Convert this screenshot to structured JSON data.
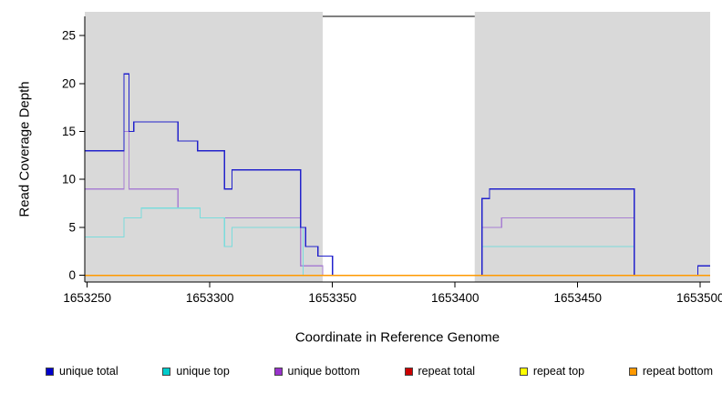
{
  "figure": {
    "background": "#ffffff",
    "shade_color": "#d9d9d9",
    "axis_color": "#000000"
  },
  "chart_data": {
    "type": "line",
    "subtype": "step-coverage-plot",
    "title": "",
    "xlabel": "Coordinate in Reference Genome",
    "ylabel": "Read Coverage Depth",
    "xlim": [
      1653249,
      1653504
    ],
    "ylim": [
      -0.7,
      27
    ],
    "x_ticks": [
      1653250,
      1653300,
      1653350,
      1653400,
      1653450,
      1653500
    ],
    "y_ticks": [
      0,
      5,
      10,
      15,
      20,
      25
    ],
    "grid": false,
    "legend_position": "bottom",
    "shaded_regions": [
      {
        "from": 1653249,
        "to": 1653346
      },
      {
        "from": 1653408,
        "to": 1653504
      }
    ],
    "series": [
      {
        "name": "repeat total",
        "color": "#cc0000",
        "step_points": [
          [
            1653249,
            0
          ]
        ]
      },
      {
        "name": "repeat top",
        "color": "#ffff00",
        "step_points": [
          [
            1653249,
            0
          ]
        ]
      },
      {
        "name": "unique bottom",
        "color": "#a87fd2",
        "step_points": [
          [
            1653249,
            9
          ],
          [
            1653265,
            15
          ],
          [
            1653267,
            9
          ],
          [
            1653287,
            7
          ],
          [
            1653296,
            6
          ],
          [
            1653337,
            1
          ],
          [
            1653346,
            0
          ],
          [
            1653411,
            5
          ],
          [
            1653419,
            6
          ],
          [
            1653473,
            0
          ]
        ]
      },
      {
        "name": "unique top",
        "color": "#7adcdc",
        "step_points": [
          [
            1653249,
            4
          ],
          [
            1653265,
            6
          ],
          [
            1653272,
            7
          ],
          [
            1653296,
            6
          ],
          [
            1653306,
            3
          ],
          [
            1653309,
            5
          ],
          [
            1653338,
            0
          ],
          [
            1653411,
            3
          ],
          [
            1653473,
            0
          ]
        ]
      },
      {
        "name": "unique total",
        "color": "#2222cc",
        "step_points": [
          [
            1653249,
            13
          ],
          [
            1653265,
            21
          ],
          [
            1653267,
            15
          ],
          [
            1653269,
            16
          ],
          [
            1653287,
            14
          ],
          [
            1653295,
            13
          ],
          [
            1653306,
            9
          ],
          [
            1653309,
            11
          ],
          [
            1653337,
            5
          ],
          [
            1653339,
            3
          ],
          [
            1653344,
            2
          ],
          [
            1653350,
            0
          ],
          [
            1653411,
            8
          ],
          [
            1653414,
            9
          ],
          [
            1653473,
            0
          ],
          [
            1653499,
            1
          ]
        ]
      },
      {
        "name": "repeat bottom",
        "color": "#ff9900",
        "step_points": [
          [
            1653249,
            0
          ]
        ]
      }
    ],
    "legend": [
      {
        "label": "unique total",
        "color": "#0000cc"
      },
      {
        "label": "unique top",
        "color": "#00cccc"
      },
      {
        "label": "unique bottom",
        "color": "#9933cc"
      },
      {
        "label": "repeat total",
        "color": "#cc0000"
      },
      {
        "label": "repeat top",
        "color": "#ffff00"
      },
      {
        "label": "repeat bottom",
        "color": "#ff9900"
      }
    ]
  }
}
